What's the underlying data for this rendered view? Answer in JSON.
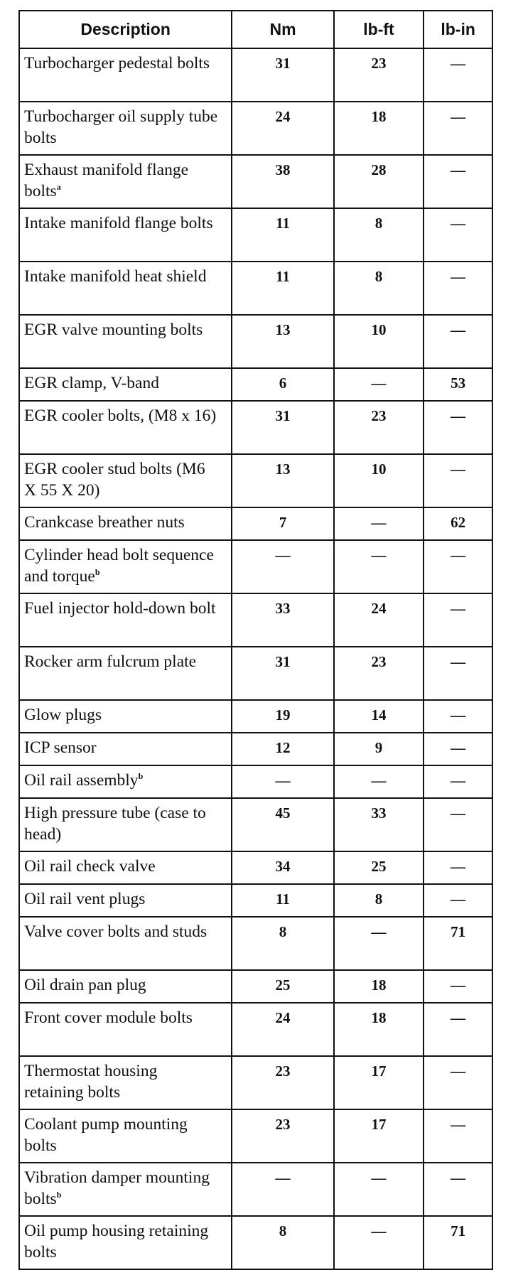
{
  "table": {
    "headers": [
      "Description",
      "Nm",
      "lb-ft",
      "lb-in"
    ],
    "rows": [
      {
        "desc": "Turbocharger pedestal bolts",
        "note": "",
        "nm": "31",
        "lbft": "23",
        "lbin": "—"
      },
      {
        "desc": "Turbocharger oil supply tube bolts",
        "note": "",
        "nm": "24",
        "lbft": "18",
        "lbin": "—"
      },
      {
        "desc": "Exhaust manifold flange bolts",
        "note": "a",
        "nm": "38",
        "lbft": "28",
        "lbin": "—"
      },
      {
        "desc": "Intake manifold flange bolts",
        "note": "",
        "nm": "11",
        "lbft": "8",
        "lbin": "—"
      },
      {
        "desc": "Intake manifold heat shield",
        "note": "",
        "nm": "11",
        "lbft": "8",
        "lbin": "—"
      },
      {
        "desc": "EGR valve mounting bolts",
        "note": "",
        "nm": "13",
        "lbft": "10",
        "lbin": "—"
      },
      {
        "desc": "EGR clamp, V-band",
        "note": "",
        "nm": "6",
        "lbft": "—",
        "lbin": "53"
      },
      {
        "desc": "EGR cooler bolts, (M8 x 16)",
        "note": "",
        "nm": "31",
        "lbft": "23",
        "lbin": "—"
      },
      {
        "desc": "EGR cooler stud bolts (M6 X 55 X 20)",
        "note": "",
        "nm": "13",
        "lbft": "10",
        "lbin": "—"
      },
      {
        "desc": "Crankcase breather nuts",
        "note": "",
        "nm": "7",
        "lbft": "—",
        "lbin": "62"
      },
      {
        "desc": "Cylinder head bolt sequence and torque",
        "note": "b",
        "nm": "—",
        "lbft": "—",
        "lbin": "—"
      },
      {
        "desc": "Fuel injector hold-down bolt",
        "note": "",
        "nm": "33",
        "lbft": "24",
        "lbin": "—"
      },
      {
        "desc": "Rocker arm fulcrum plate",
        "note": "",
        "nm": "31",
        "lbft": "23",
        "lbin": "—"
      },
      {
        "desc": "Glow plugs",
        "note": "",
        "nm": "19",
        "lbft": "14",
        "lbin": "—"
      },
      {
        "desc": "ICP sensor",
        "note": "",
        "nm": "12",
        "lbft": "9",
        "lbin": "—"
      },
      {
        "desc": "Oil rail assembly",
        "note": "b",
        "nm": "—",
        "lbft": "—",
        "lbin": "—"
      },
      {
        "desc": "High pressure tube (case to head)",
        "note": "",
        "nm": "45",
        "lbft": "33",
        "lbin": "—"
      },
      {
        "desc": "Oil rail check valve",
        "note": "",
        "nm": "34",
        "lbft": "25",
        "lbin": "—"
      },
      {
        "desc": "Oil rail vent plugs",
        "note": "",
        "nm": "11",
        "lbft": "8",
        "lbin": "—"
      },
      {
        "desc": "Valve cover bolts and studs",
        "note": "",
        "nm": "8",
        "lbft": "—",
        "lbin": "71"
      },
      {
        "desc": "Oil drain pan plug",
        "note": "",
        "nm": "25",
        "lbft": "18",
        "lbin": "—"
      },
      {
        "desc": "Front cover module bolts",
        "note": "",
        "nm": "24",
        "lbft": "18",
        "lbin": "—"
      },
      {
        "desc": "Thermostat housing retaining bolts",
        "note": "",
        "nm": "23",
        "lbft": "17",
        "lbin": "—"
      },
      {
        "desc": "Coolant pump mounting bolts",
        "note": "",
        "nm": "23",
        "lbft": "17",
        "lbin": "—"
      },
      {
        "desc": "Vibration damper mounting bolts",
        "note": "b",
        "nm": "—",
        "lbft": "—",
        "lbin": "—"
      },
      {
        "desc": "Oil pump housing retaining bolts",
        "note": "",
        "nm": "8",
        "lbft": "—",
        "lbin": "71"
      }
    ]
  }
}
